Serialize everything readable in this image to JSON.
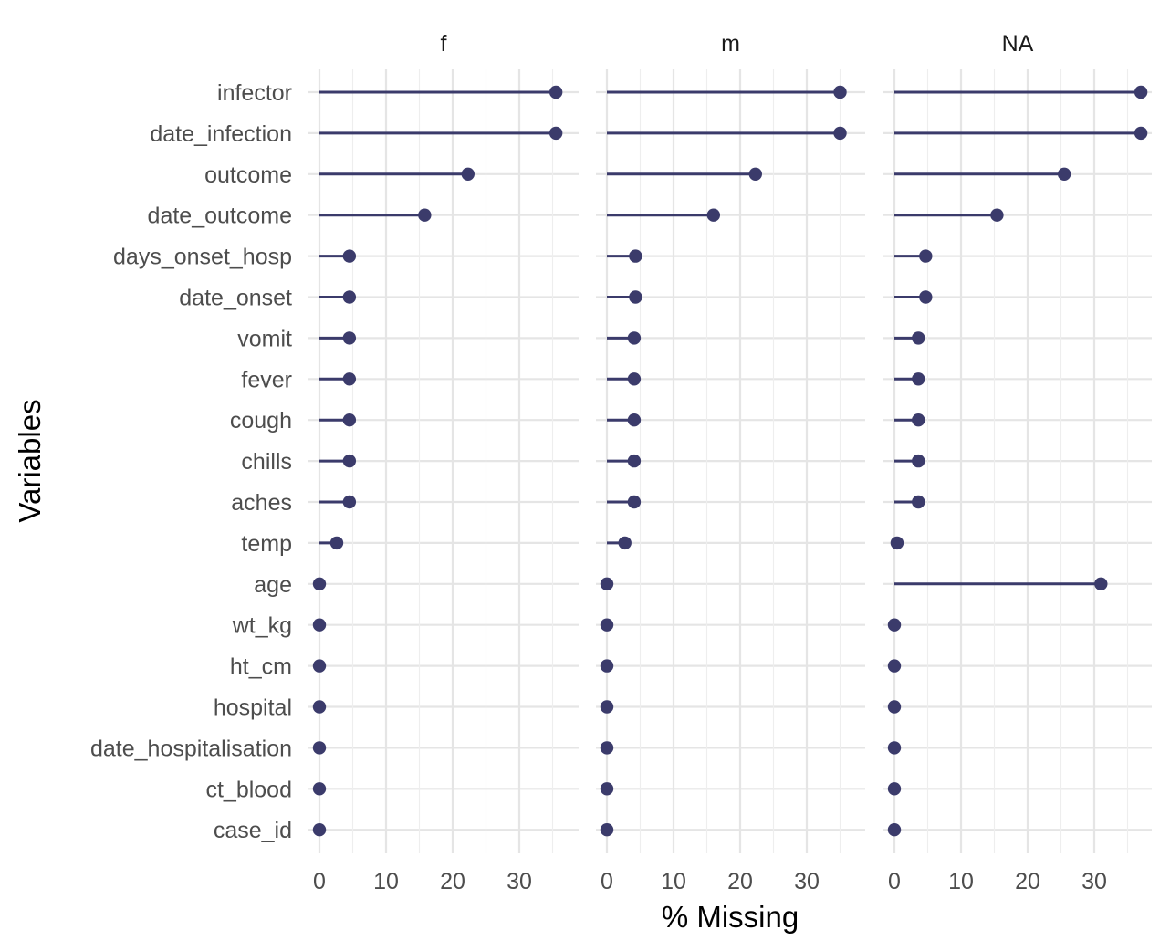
{
  "chart_data": {
    "type": "lollipop",
    "facets": [
      "f",
      "m",
      "NA"
    ],
    "categories": [
      "infector",
      "date_infection",
      "outcome",
      "date_outcome",
      "days_onset_hosp",
      "date_onset",
      "vomit",
      "fever",
      "cough",
      "chills",
      "aches",
      "temp",
      "age",
      "wt_kg",
      "ht_cm",
      "hospital",
      "date_hospitalisation",
      "ct_blood",
      "case_id"
    ],
    "series": [
      {
        "facet": "f",
        "values": [
          35.5,
          35.5,
          22.3,
          15.8,
          4.5,
          4.5,
          4.5,
          4.5,
          4.5,
          4.5,
          4.5,
          2.6,
          0,
          0,
          0,
          0,
          0,
          0,
          0
        ]
      },
      {
        "facet": "m",
        "values": [
          35.0,
          35.0,
          22.3,
          16.0,
          4.3,
          4.3,
          4.1,
          4.1,
          4.1,
          4.1,
          4.1,
          2.7,
          0,
          0,
          0,
          0,
          0,
          0,
          0
        ]
      },
      {
        "facet": "NA",
        "values": [
          37.0,
          37.0,
          25.5,
          15.4,
          4.7,
          4.7,
          3.6,
          3.6,
          3.6,
          3.6,
          3.6,
          0.4,
          31.0,
          0,
          0,
          0,
          0,
          0,
          0
        ]
      }
    ],
    "xlabel": "% Missing",
    "ylabel": "Variables",
    "xticks": [
      0,
      10,
      20,
      30
    ],
    "colors": {
      "lollipop": "#3b3b6b"
    },
    "grid": true
  }
}
